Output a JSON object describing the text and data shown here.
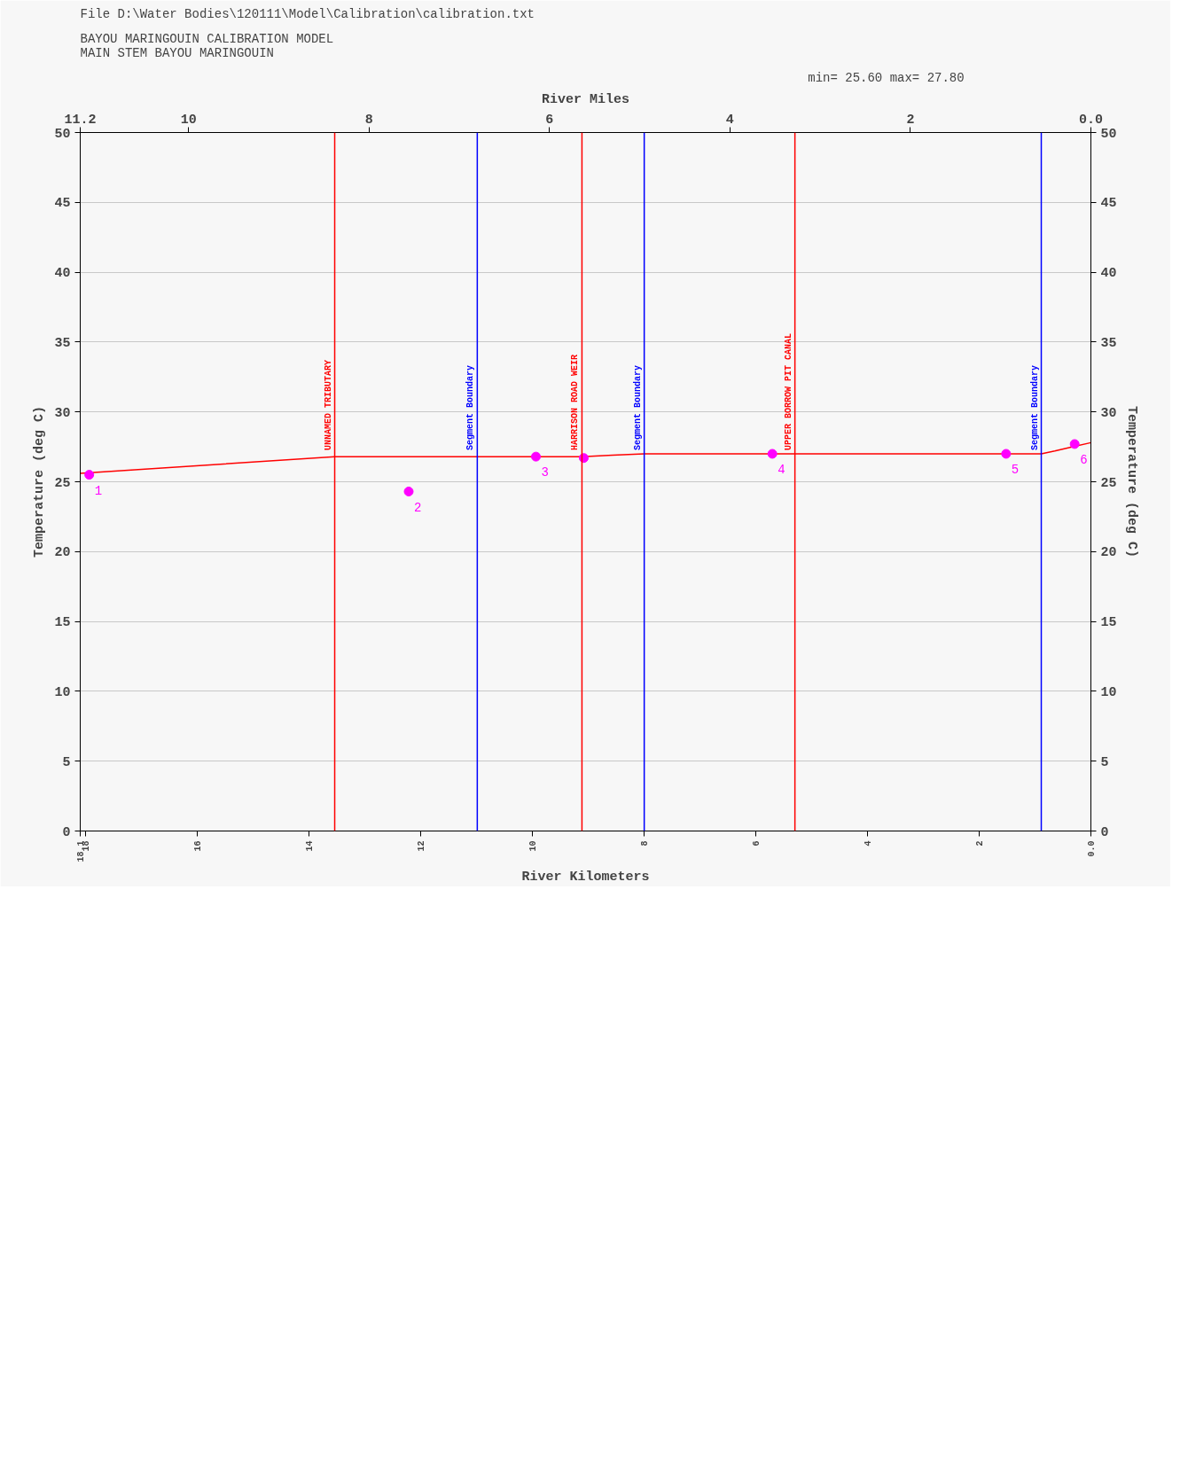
{
  "chart_data": {
    "type": "line",
    "title": "File D:\\Water Bodies\\120111\\Model\\Calibration\\calibration.txt",
    "subtitle": "BAYOU MARINGOUIN CALIBRATION MODEL\nMAIN STEM BAYOU MARINGOUIN",
    "annotations": [
      "min=      25.60        max=      27.80",
      {
        "text": "1",
        "x": 11.1,
        "y": 25.5
      },
      {
        "text": "2",
        "x": 7.56,
        "y": 24.3
      },
      {
        "text": "3",
        "x": 6.15,
        "y": 26.8
      },
      {
        "text": "4",
        "x": 3.53,
        "y": 27.0
      },
      {
        "text": "5",
        "x": 0.94,
        "y": 27.0
      },
      {
        "text": "6",
        "x": 0.18,
        "y": 27.7
      }
    ],
    "xlabel": "River Miles",
    "x2label": "River Kilometers",
    "ylabel": "Temperature (deg C)",
    "y2label": "Temperature (deg C)",
    "xlim": [
      11.2,
      0
    ],
    "xticks": [
      {
        "value": 0,
        "label": "0.0"
      },
      2,
      4,
      6,
      8,
      10,
      11.2
    ],
    "x2lim": [
      18.1,
      0
    ],
    "x2ticks": [
      {
        "value": 0,
        "label": "0.0"
      },
      2,
      4,
      6,
      8,
      10,
      12,
      14,
      16,
      18,
      18.1
    ],
    "ylim": [
      0,
      50
    ],
    "yticks": [
      0,
      5,
      10,
      15,
      20,
      25,
      30,
      35,
      40,
      45,
      50
    ],
    "y2lim": [
      0,
      50
    ],
    "y2ticks": [
      0,
      5,
      10,
      15,
      20,
      25,
      30,
      35,
      40,
      45,
      50
    ],
    "grid": "y",
    "ref_lines": [
      {
        "axis": "x",
        "value": 0.55,
        "label": "Segment Boundary",
        "color": "#0000ff"
      },
      {
        "axis": "x",
        "value": 3.28,
        "label": "UPPER BORROW PIT CANAL",
        "color": "#ff0000"
      },
      {
        "axis": "x",
        "value": 4.95,
        "label": "Segment Boundary",
        "color": "#0000ff"
      },
      {
        "axis": "x",
        "value": 5.64,
        "label": "HARRISON ROAD WEIR",
        "color": "#ff0000"
      },
      {
        "axis": "x",
        "value": 6.8,
        "label": "Segment Boundary",
        "color": "#0000ff"
      },
      {
        "axis": "x",
        "value": 8.38,
        "label": "UNNAMED TRIBUTARY",
        "color": "#ff0000"
      }
    ],
    "series": [
      {
        "type": "line",
        "color": "#ff0000",
        "x": [
          0,
          0.2,
          0.4,
          0.55,
          4.95,
          5.3,
          5.64,
          8.38,
          11.2
        ],
        "values": [
          27.8,
          27.5,
          27.2,
          27.0,
          27.0,
          26.9,
          26.8,
          26.8,
          25.6
        ]
      },
      {
        "type": "scatter",
        "marker": "circle",
        "color": "#ff00ff",
        "x": [
          11.1,
          7.56,
          6.15,
          5.62,
          3.53,
          0.94,
          0.18
        ],
        "values": [
          25.5,
          24.3,
          26.8,
          26.7,
          27.0,
          27.0,
          27.7
        ]
      }
    ]
  }
}
